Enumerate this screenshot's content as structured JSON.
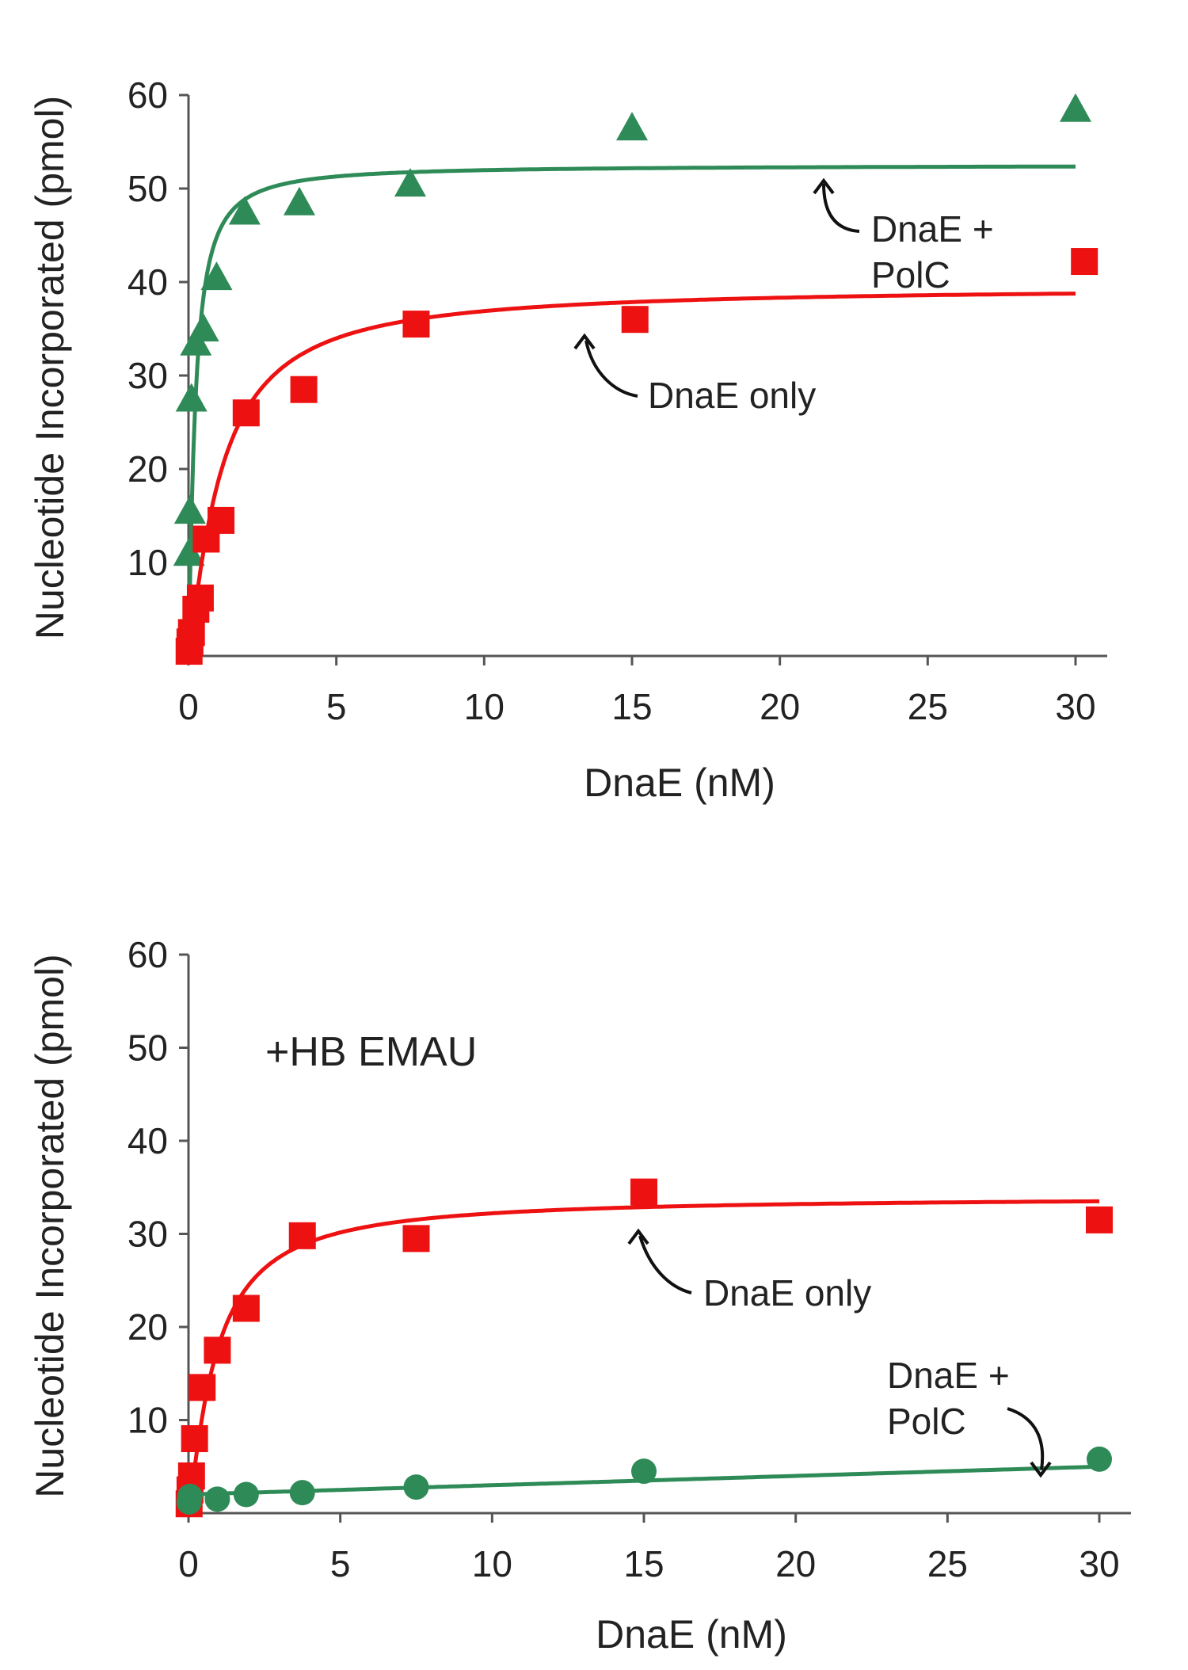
{
  "colors": {
    "dnae_only": "#ee1111",
    "dnae_polc": "#2e8b57",
    "axis": "#555555",
    "text": "#222222"
  },
  "chart_data": [
    {
      "type": "scatter",
      "xlabel": "DnaE (nM)",
      "ylabel": "Nucleotide Incorporated (pmol)",
      "xlim": [
        0,
        30
      ],
      "ylim": [
        0,
        60
      ],
      "xticks": [
        "0",
        "5",
        "10",
        "15",
        "20",
        "25",
        "30"
      ],
      "yticks": [
        "10",
        "20",
        "30",
        "40",
        "50",
        "60"
      ],
      "panel_label": "",
      "grid": false,
      "series": [
        {
          "key": "dnae_polc",
          "marker": "triangle",
          "points": [
            {
              "x": 0.02,
              "y": 11
            },
            {
              "x": 0.05,
              "y": 15.5
            },
            {
              "x": 0.1,
              "y": 27.5
            },
            {
              "x": 0.25,
              "y": 33.5
            },
            {
              "x": 0.5,
              "y": 35
            },
            {
              "x": 0.95,
              "y": 40.5
            },
            {
              "x": 1.9,
              "y": 47.5
            },
            {
              "x": 3.75,
              "y": 48.5
            },
            {
              "x": 7.5,
              "y": 50.5
            },
            {
              "x": 15,
              "y": 56.5
            },
            {
              "x": 30,
              "y": 58.5
            }
          ],
          "fit": {
            "vmax": 52.5,
            "k": 0.22,
            "hill": 1.2
          }
        },
        {
          "key": "dnae_only",
          "marker": "square",
          "points": [
            {
              "x": 0.02,
              "y": 0.5
            },
            {
              "x": 0.05,
              "y": 1.5
            },
            {
              "x": 0.1,
              "y": 2.5
            },
            {
              "x": 0.25,
              "y": 5
            },
            {
              "x": 0.4,
              "y": 6.2
            },
            {
              "x": 0.6,
              "y": 12.5
            },
            {
              "x": 1.1,
              "y": 14.5
            },
            {
              "x": 1.95,
              "y": 26
            },
            {
              "x": 3.9,
              "y": 28.5
            },
            {
              "x": 7.7,
              "y": 35.5
            },
            {
              "x": 15.1,
              "y": 36
            },
            {
              "x": 30.3,
              "y": 42.2
            }
          ],
          "fit": {
            "vmax": 39.5,
            "k": 1.1,
            "hill": 1.2
          }
        }
      ],
      "annotations": [
        {
          "key": "polc",
          "lines": [
            "DnaE +",
            "PolC"
          ]
        },
        {
          "key": "only",
          "lines": [
            "DnaE only"
          ]
        }
      ]
    },
    {
      "type": "scatter",
      "xlabel": "DnaE (nM)",
      "ylabel": "Nucleotide Incorporated (pmol)",
      "xlim": [
        0,
        30
      ],
      "ylim": [
        0,
        60
      ],
      "xticks": [
        "0",
        "5",
        "10",
        "15",
        "20",
        "25",
        "30"
      ],
      "yticks": [
        "10",
        "20",
        "30",
        "40",
        "50",
        "60"
      ],
      "panel_label": "+HB EMAU",
      "grid": false,
      "series": [
        {
          "key": "dnae_only",
          "marker": "square",
          "points": [
            {
              "x": 0.02,
              "y": 1
            },
            {
              "x": 0.05,
              "y": 2.5
            },
            {
              "x": 0.1,
              "y": 4
            },
            {
              "x": 0.2,
              "y": 8
            },
            {
              "x": 0.45,
              "y": 13.5
            },
            {
              "x": 0.95,
              "y": 17.5
            },
            {
              "x": 1.9,
              "y": 22
            },
            {
              "x": 3.75,
              "y": 29.8
            },
            {
              "x": 7.5,
              "y": 29.5
            },
            {
              "x": 15,
              "y": 34.5
            },
            {
              "x": 30,
              "y": 31.5
            }
          ],
          "fit": {
            "vmax": 34,
            "k": 0.9,
            "hill": 1.2
          }
        },
        {
          "key": "dnae_polc",
          "marker": "circle",
          "points": [
            {
              "x": 0.02,
              "y": 1.2
            },
            {
              "x": 0.05,
              "y": 1.8
            },
            {
              "x": 0.95,
              "y": 1.5
            },
            {
              "x": 1.9,
              "y": 2.0
            },
            {
              "x": 3.75,
              "y": 2.2
            },
            {
              "x": 7.5,
              "y": 2.8
            },
            {
              "x": 15,
              "y": 4.5
            },
            {
              "x": 30,
              "y": 5.8
            }
          ],
          "fit": {
            "type": "linear",
            "y0": 2.0,
            "slope": 0.1
          }
        }
      ],
      "annotations": [
        {
          "key": "only",
          "lines": [
            "DnaE only"
          ]
        },
        {
          "key": "polc",
          "lines": [
            "DnaE +",
            "PolC"
          ]
        }
      ]
    }
  ]
}
